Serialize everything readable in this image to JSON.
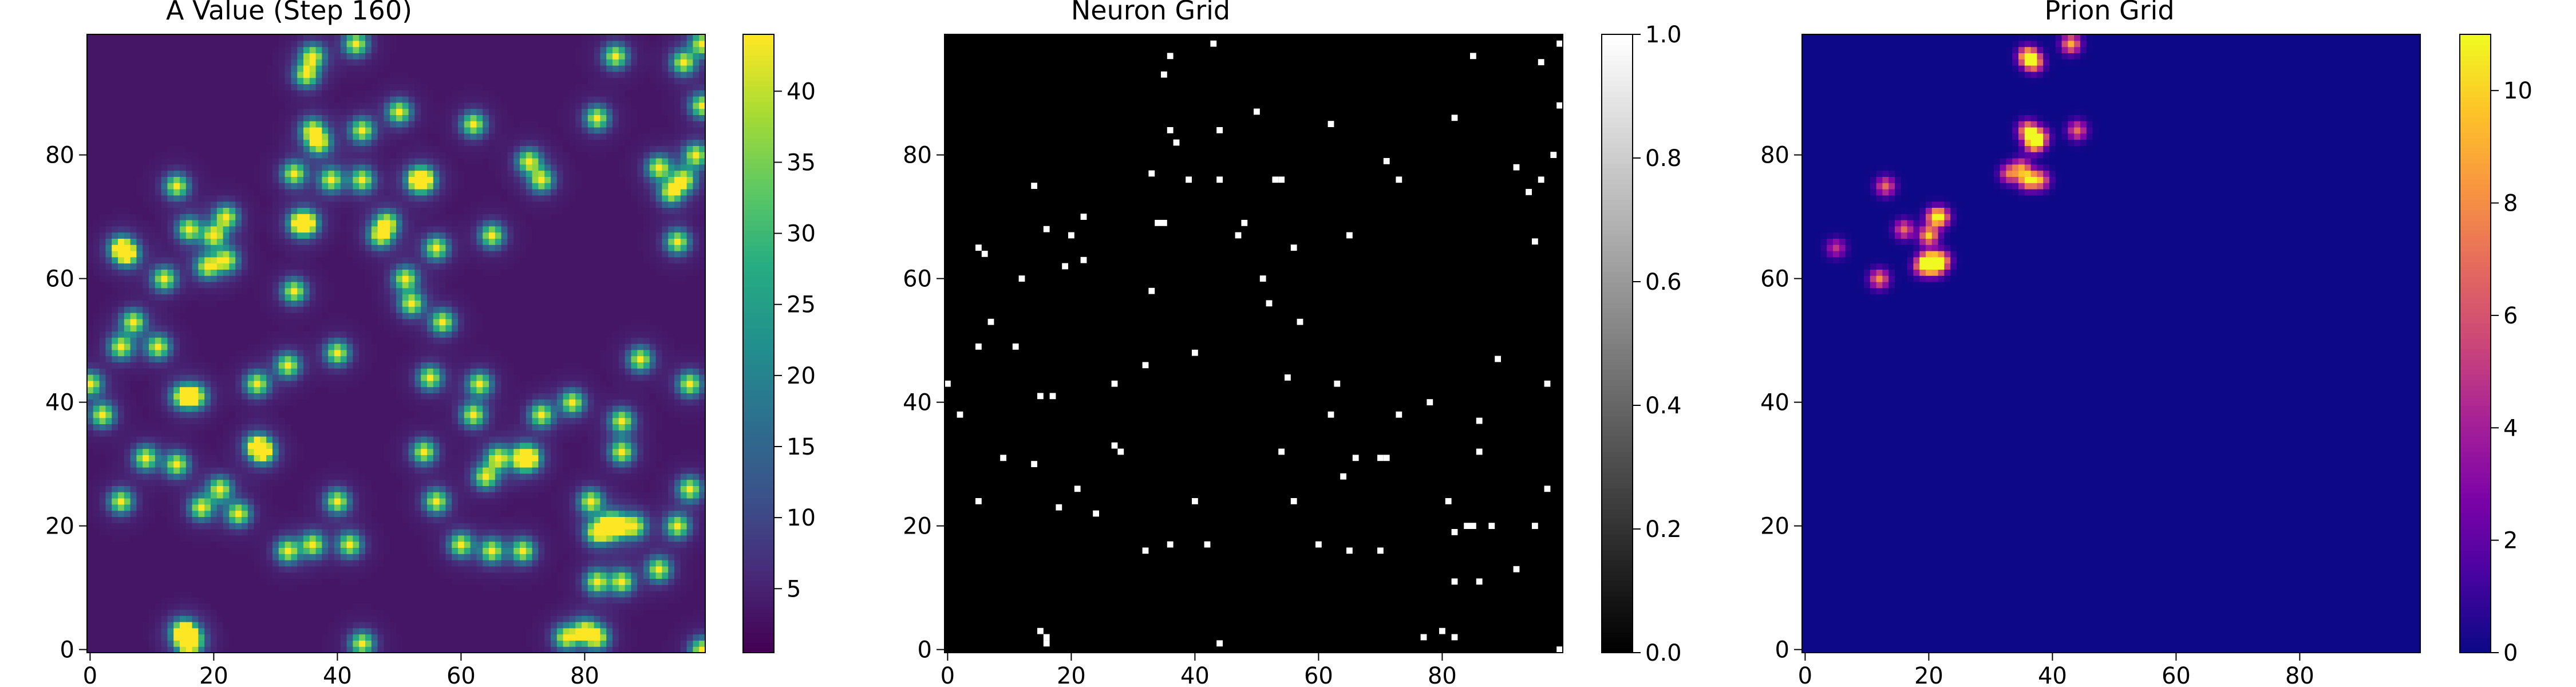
{
  "chart_data": [
    {
      "type": "heatmap",
      "title": "A Value (Step 160)",
      "colormap": "viridis",
      "xlim": [
        0,
        99
      ],
      "ylim": [
        0,
        99
      ],
      "xticks": [
        "0",
        "20",
        "40",
        "60",
        "80"
      ],
      "yticks": [
        "0",
        "20",
        "40",
        "60",
        "80"
      ],
      "colorbar": {
        "ticks": [
          "5",
          "10",
          "15",
          "20",
          "25",
          "30",
          "35",
          "40"
        ],
        "range": [
          0.5,
          44
        ]
      },
      "points": [
        [
          36,
          96
        ],
        [
          43,
          98
        ],
        [
          35,
          93
        ],
        [
          44,
          84
        ],
        [
          36,
          84
        ],
        [
          37,
          82
        ],
        [
          39,
          76
        ],
        [
          44,
          76
        ],
        [
          50,
          87
        ],
        [
          53,
          76
        ],
        [
          54,
          76
        ],
        [
          62,
          85
        ],
        [
          71,
          79
        ],
        [
          73,
          76
        ],
        [
          82,
          86
        ],
        [
          85,
          96
        ],
        [
          92,
          78
        ],
        [
          94,
          74
        ],
        [
          96,
          76
        ],
        [
          98,
          80
        ],
        [
          99,
          88
        ],
        [
          99,
          98
        ],
        [
          96,
          95
        ],
        [
          14,
          75
        ],
        [
          33,
          77
        ],
        [
          34,
          69
        ],
        [
          35,
          69
        ],
        [
          16,
          68
        ],
        [
          20,
          67
        ],
        [
          22,
          70
        ],
        [
          22,
          63
        ],
        [
          19,
          62
        ],
        [
          12,
          60
        ],
        [
          5,
          65
        ],
        [
          6,
          64
        ],
        [
          47,
          67
        ],
        [
          48,
          69
        ],
        [
          51,
          60
        ],
        [
          52,
          56
        ],
        [
          56,
          65
        ],
        [
          57,
          53
        ],
        [
          65,
          67
        ],
        [
          95,
          66
        ],
        [
          7,
          53
        ],
        [
          5,
          49
        ],
        [
          11,
          49
        ],
        [
          33,
          58
        ],
        [
          40,
          48
        ],
        [
          32,
          46
        ],
        [
          27,
          43
        ],
        [
          0,
          43
        ],
        [
          2,
          38
        ],
        [
          15,
          41
        ],
        [
          17,
          41
        ],
        [
          9,
          31
        ],
        [
          14,
          30
        ],
        [
          5,
          24
        ],
        [
          18,
          23
        ],
        [
          21,
          26
        ],
        [
          24,
          22
        ],
        [
          27,
          33
        ],
        [
          28,
          32
        ],
        [
          32,
          16
        ],
        [
          36,
          17
        ],
        [
          40,
          24
        ],
        [
          42,
          17
        ],
        [
          44,
          1
        ],
        [
          16,
          2
        ],
        [
          16,
          1
        ],
        [
          15,
          3
        ],
        [
          54,
          32
        ],
        [
          56,
          24
        ],
        [
          55,
          44
        ],
        [
          60,
          17
        ],
        [
          62,
          38
        ],
        [
          63,
          43
        ],
        [
          64,
          28
        ],
        [
          66,
          31
        ],
        [
          70,
          31
        ],
        [
          71,
          31
        ],
        [
          65,
          16
        ],
        [
          70,
          16
        ],
        [
          73,
          38
        ],
        [
          78,
          40
        ],
        [
          81,
          24
        ],
        [
          82,
          11
        ],
        [
          80,
          3
        ],
        [
          82,
          2
        ],
        [
          77,
          2
        ],
        [
          82,
          19
        ],
        [
          84,
          20
        ],
        [
          86,
          32
        ],
        [
          86,
          37
        ],
        [
          85,
          20
        ],
        [
          86,
          11
        ],
        [
          88,
          20
        ],
        [
          89,
          47
        ],
        [
          92,
          13
        ],
        [
          95,
          20
        ],
        [
          97,
          26
        ],
        [
          97,
          43
        ],
        [
          99,
          0
        ]
      ]
    },
    {
      "type": "heatmap",
      "title": "Neuron Grid",
      "colormap": "gray",
      "xlim": [
        0,
        99
      ],
      "ylim": [
        0,
        99
      ],
      "xticks": [
        "0",
        "20",
        "40",
        "60",
        "80"
      ],
      "yticks": [
        "0",
        "20",
        "40",
        "60",
        "80"
      ],
      "colorbar": {
        "ticks": [
          "0.0",
          "0.2",
          "0.4",
          "0.6",
          "0.8",
          "1.0"
        ],
        "range": [
          0,
          1
        ]
      }
    },
    {
      "type": "heatmap",
      "title": "Prion Grid",
      "colormap": "plasma",
      "xlim": [
        0,
        99
      ],
      "ylim": [
        0,
        99
      ],
      "xticks": [
        "0",
        "20",
        "40",
        "60",
        "80"
      ],
      "yticks": [
        "0",
        "20",
        "40",
        "60",
        "80"
      ],
      "colorbar": {
        "ticks": [
          "0",
          "2",
          "4",
          "6",
          "8",
          "10"
        ],
        "range": [
          0,
          11
        ]
      },
      "points": [
        [
          36,
          96,
          11
        ],
        [
          37,
          95,
          9
        ],
        [
          43,
          98,
          9
        ],
        [
          36,
          84,
          10
        ],
        [
          37,
          82,
          11
        ],
        [
          38,
          83,
          7
        ],
        [
          44,
          84,
          7
        ],
        [
          33,
          77,
          7
        ],
        [
          35,
          78,
          7
        ],
        [
          36,
          76,
          10
        ],
        [
          38,
          76,
          8
        ],
        [
          13,
          75,
          7
        ],
        [
          16,
          68,
          7
        ],
        [
          20,
          67,
          10
        ],
        [
          21,
          70,
          8
        ],
        [
          22,
          70,
          7
        ],
        [
          20,
          63,
          10
        ],
        [
          21,
          62,
          9
        ],
        [
          22,
          63,
          9
        ],
        [
          19,
          62,
          8
        ],
        [
          12,
          60,
          8
        ],
        [
          5,
          65,
          5
        ]
      ]
    }
  ]
}
